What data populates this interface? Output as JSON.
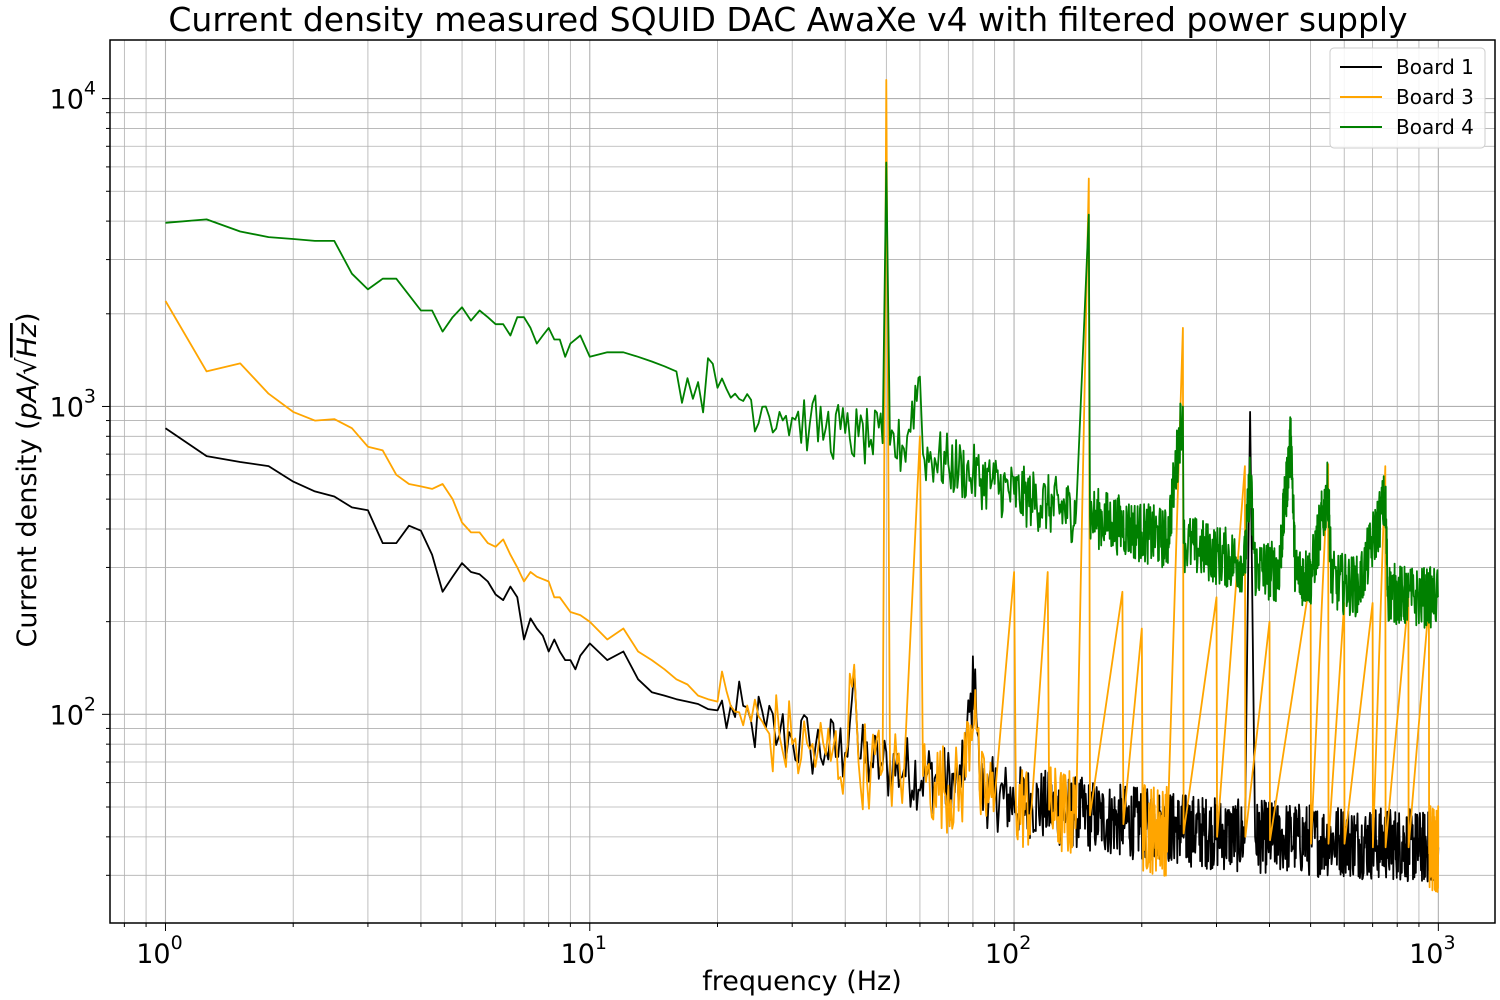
{
  "chart_data": {
    "type": "line",
    "title": "Current density measured SQUID DAC AwaXe v4 with filtered power supply",
    "xlabel": "frequency (Hz)",
    "ylabel": {
      "prefix": "Current density (",
      "math": "pA/",
      "sqrt": "Hz",
      "suffix": ")"
    },
    "xscale": "log",
    "yscale": "log",
    "xlim": [
      0.74,
      1360
    ],
    "ylim": [
      21,
      15500
    ],
    "grid": "major and minor",
    "legend_position": "top-right",
    "x_ticks": [
      {
        "base": "10",
        "exp": "0",
        "value": 1
      },
      {
        "base": "10",
        "exp": "1",
        "value": 10
      },
      {
        "base": "10",
        "exp": "2",
        "value": 100
      },
      {
        "base": "10",
        "exp": "3",
        "value": 1000
      }
    ],
    "y_ticks": [
      {
        "base": "10",
        "exp": "2",
        "value": 100
      },
      {
        "base": "10",
        "exp": "3",
        "value": 1000
      },
      {
        "base": "10",
        "exp": "4",
        "value": 10000
      }
    ],
    "series": [
      {
        "name": "Board 1",
        "color": "#000000",
        "points": [
          [
            1,
            850
          ],
          [
            1.25,
            690
          ],
          [
            1.5,
            660
          ],
          [
            1.75,
            640
          ],
          [
            2,
            570
          ],
          [
            2.25,
            530
          ],
          [
            2.5,
            510
          ],
          [
            2.75,
            470
          ],
          [
            3,
            460
          ],
          [
            3.25,
            360
          ],
          [
            3.5,
            360
          ],
          [
            3.75,
            410
          ],
          [
            4,
            395
          ],
          [
            4.25,
            330
          ],
          [
            4.5,
            250
          ],
          [
            4.75,
            280
          ],
          [
            5,
            310
          ],
          [
            5.25,
            290
          ],
          [
            5.5,
            285
          ],
          [
            5.75,
            270
          ],
          [
            6,
            245
          ],
          [
            6.25,
            235
          ],
          [
            6.5,
            260
          ],
          [
            6.75,
            240
          ],
          [
            7,
            175
          ],
          [
            7.25,
            205
          ],
          [
            7.5,
            190
          ],
          [
            7.75,
            180
          ],
          [
            8,
            160
          ],
          [
            8.25,
            175
          ],
          [
            8.5,
            160
          ],
          [
            8.75,
            150
          ],
          [
            9,
            150
          ],
          [
            9.25,
            140
          ],
          [
            9.5,
            155
          ],
          [
            10,
            170
          ],
          [
            11,
            150
          ],
          [
            12,
            160
          ],
          [
            13,
            130
          ],
          [
            14,
            118
          ],
          [
            15,
            115
          ],
          [
            16,
            112
          ],
          [
            17,
            110
          ],
          [
            18,
            108
          ],
          [
            19,
            104
          ],
          [
            20,
            103
          ],
          [
            22,
            98
          ],
          [
            24,
            95
          ],
          [
            26,
            90
          ],
          [
            28,
            86
          ],
          [
            30,
            83
          ],
          [
            33,
            80
          ],
          [
            36,
            77
          ],
          [
            40,
            75
          ],
          [
            42,
            140
          ],
          [
            43,
            72
          ],
          [
            46,
            70
          ],
          [
            49,
            68
          ],
          [
            55,
            66
          ],
          [
            65,
            62
          ],
          [
            75,
            58
          ],
          [
            81,
            140
          ],
          [
            83,
            57
          ],
          [
            90,
            55
          ],
          [
            100,
            52
          ],
          [
            110,
            52
          ],
          [
            125,
            49
          ],
          [
            140,
            48
          ],
          [
            160,
            46
          ],
          [
            180,
            45
          ],
          [
            200,
            44
          ],
          [
            230,
            43
          ],
          [
            260,
            42
          ],
          [
            300,
            41
          ],
          [
            350,
            40
          ],
          [
            360,
            960
          ],
          [
            370,
            40
          ],
          [
            420,
            40
          ],
          [
            500,
            39
          ],
          [
            600,
            39
          ],
          [
            700,
            38
          ],
          [
            800,
            38
          ],
          [
            900,
            37
          ],
          [
            1000,
            37
          ]
        ],
        "noise": 0.12
      },
      {
        "name": "Board 3",
        "color": "#FFA500",
        "points": [
          [
            1,
            2200
          ],
          [
            1.25,
            1300
          ],
          [
            1.5,
            1380
          ],
          [
            1.75,
            1100
          ],
          [
            2,
            960
          ],
          [
            2.25,
            900
          ],
          [
            2.5,
            910
          ],
          [
            2.75,
            850
          ],
          [
            3,
            740
          ],
          [
            3.25,
            720
          ],
          [
            3.5,
            600
          ],
          [
            3.75,
            560
          ],
          [
            4,
            550
          ],
          [
            4.25,
            540
          ],
          [
            4.5,
            560
          ],
          [
            4.75,
            500
          ],
          [
            5,
            420
          ],
          [
            5.25,
            390
          ],
          [
            5.5,
            390
          ],
          [
            5.75,
            360
          ],
          [
            6,
            350
          ],
          [
            6.25,
            370
          ],
          [
            6.5,
            330
          ],
          [
            6.75,
            300
          ],
          [
            7,
            270
          ],
          [
            7.25,
            290
          ],
          [
            7.5,
            280
          ],
          [
            8,
            270
          ],
          [
            8.25,
            240
          ],
          [
            8.5,
            240
          ],
          [
            9,
            215
          ],
          [
            9.5,
            210
          ],
          [
            10,
            200
          ],
          [
            11,
            175
          ],
          [
            12,
            190
          ],
          [
            13,
            160
          ],
          [
            14,
            150
          ],
          [
            15,
            140
          ],
          [
            16,
            130
          ],
          [
            17,
            125
          ],
          [
            18,
            115
          ],
          [
            19,
            112
          ],
          [
            20,
            110
          ],
          [
            22,
            102
          ],
          [
            24,
            95
          ],
          [
            26,
            90
          ],
          [
            28,
            85
          ],
          [
            30,
            80
          ],
          [
            33,
            77
          ],
          [
            36,
            74
          ],
          [
            40,
            72
          ],
          [
            42,
            145
          ],
          [
            43,
            70
          ],
          [
            46,
            68
          ],
          [
            49,
            66
          ],
          [
            50,
            11500
          ],
          [
            51,
            66
          ],
          [
            55,
            64
          ],
          [
            60,
            800
          ],
          [
            61,
            63
          ],
          [
            65,
            60
          ],
          [
            75,
            56
          ],
          [
            81,
            120
          ],
          [
            83,
            55
          ],
          [
            90,
            53
          ],
          [
            100,
            290
          ],
          [
            101,
            51
          ],
          [
            110,
            50
          ],
          [
            120,
            290
          ],
          [
            121,
            49
          ],
          [
            140,
            47
          ],
          [
            150,
            5500
          ],
          [
            151,
            47
          ],
          [
            180,
            250
          ],
          [
            181,
            44
          ],
          [
            200,
            190
          ],
          [
            201,
            43
          ],
          [
            230,
            42
          ],
          [
            250,
            1800
          ],
          [
            251,
            41
          ],
          [
            300,
            240
          ],
          [
            301,
            40
          ],
          [
            350,
            640
          ],
          [
            351,
            40
          ],
          [
            400,
            200
          ],
          [
            401,
            39
          ],
          [
            500,
            280
          ],
          [
            501,
            38
          ],
          [
            550,
            650
          ],
          [
            551,
            38
          ],
          [
            600,
            230
          ],
          [
            601,
            38
          ],
          [
            700,
            230
          ],
          [
            701,
            37
          ],
          [
            750,
            640
          ],
          [
            751,
            37
          ],
          [
            850,
            240
          ],
          [
            851,
            37
          ],
          [
            950,
            230
          ],
          [
            951,
            37
          ],
          [
            1000,
            37
          ]
        ],
        "noise": 0.15
      },
      {
        "name": "Board 4",
        "color": "#008000",
        "points": [
          [
            1,
            3950
          ],
          [
            1.25,
            4050
          ],
          [
            1.5,
            3700
          ],
          [
            1.75,
            3550
          ],
          [
            2,
            3500
          ],
          [
            2.25,
            3450
          ],
          [
            2.5,
            3450
          ],
          [
            2.75,
            2700
          ],
          [
            3,
            2400
          ],
          [
            3.25,
            2600
          ],
          [
            3.5,
            2600
          ],
          [
            3.75,
            2300
          ],
          [
            4,
            2050
          ],
          [
            4.25,
            2050
          ],
          [
            4.5,
            1750
          ],
          [
            4.75,
            1950
          ],
          [
            5,
            2100
          ],
          [
            5.25,
            1900
          ],
          [
            5.5,
            2050
          ],
          [
            5.75,
            1950
          ],
          [
            6,
            1850
          ],
          [
            6.25,
            1850
          ],
          [
            6.5,
            1700
          ],
          [
            6.75,
            1950
          ],
          [
            7,
            1950
          ],
          [
            7.25,
            1800
          ],
          [
            7.5,
            1600
          ],
          [
            7.75,
            1700
          ],
          [
            8,
            1800
          ],
          [
            8.25,
            1650
          ],
          [
            8.5,
            1650
          ],
          [
            8.75,
            1450
          ],
          [
            9,
            1600
          ],
          [
            9.5,
            1700
          ],
          [
            10,
            1450
          ],
          [
            11,
            1500
          ],
          [
            12,
            1500
          ],
          [
            13,
            1450
          ],
          [
            14,
            1400
          ],
          [
            15,
            1350
          ],
          [
            16,
            1300
          ],
          [
            18,
            1200
          ],
          [
            20,
            1150
          ],
          [
            22,
            1100
          ],
          [
            24,
            1050
          ],
          [
            26,
            1000
          ],
          [
            28,
            960
          ],
          [
            30,
            920
          ],
          [
            33,
            880
          ],
          [
            36,
            850
          ],
          [
            40,
            820
          ],
          [
            43,
            800
          ],
          [
            46,
            780
          ],
          [
            49,
            760
          ],
          [
            50,
            6200
          ],
          [
            51,
            750
          ],
          [
            55,
            730
          ],
          [
            60,
            1250
          ],
          [
            61,
            700
          ],
          [
            65,
            680
          ],
          [
            70,
            650
          ],
          [
            80,
            600
          ],
          [
            90,
            560
          ],
          [
            100,
            520
          ],
          [
            110,
            500
          ],
          [
            120,
            480
          ],
          [
            140,
            450
          ],
          [
            150,
            4200
          ],
          [
            151,
            440
          ],
          [
            170,
            420
          ],
          [
            200,
            390
          ],
          [
            230,
            370
          ],
          [
            250,
            1000
          ],
          [
            251,
            360
          ],
          [
            300,
            330
          ],
          [
            350,
            310
          ],
          [
            360,
            600
          ],
          [
            370,
            300
          ],
          [
            420,
            290
          ],
          [
            450,
            800
          ],
          [
            460,
            285
          ],
          [
            500,
            280
          ],
          [
            550,
            540
          ],
          [
            560,
            270
          ],
          [
            650,
            260
          ],
          [
            750,
            500
          ],
          [
            760,
            250
          ],
          [
            850,
            240
          ],
          [
            1000,
            240
          ]
        ],
        "noise": 0.1
      }
    ]
  }
}
